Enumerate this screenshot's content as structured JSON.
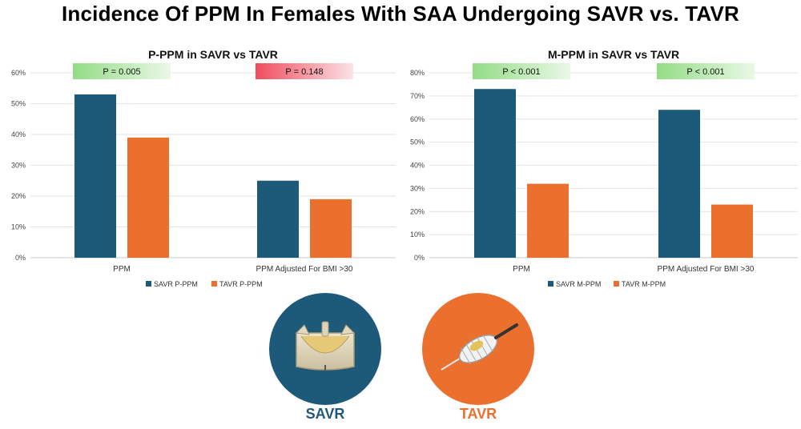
{
  "page": {
    "title": "Incidence Of PPM In Females With SAA Undergoing SAVR vs. TAVR"
  },
  "colors": {
    "savr": "#1d5a7a",
    "tavr": "#eb6f2d",
    "pval_green": "#a9e29a",
    "pval_red": "#f0808a"
  },
  "chart_data": [
    {
      "type": "bar",
      "title": "P-PPM in SAVR vs TAVR",
      "categories": [
        "PPM",
        "PPM Adjusted For BMI >30"
      ],
      "series": [
        {
          "name": "SAVR P-PPM",
          "values": [
            53,
            25
          ]
        },
        {
          "name": "TAVR P-PPM",
          "values": [
            39,
            19
          ]
        }
      ],
      "ylim": [
        0,
        60
      ],
      "yticks": [
        0,
        10,
        20,
        30,
        40,
        50,
        60
      ],
      "ytick_labels": [
        "0%",
        "10%",
        "20%",
        "30%",
        "40%",
        "50%",
        "60%"
      ],
      "annotations": [
        {
          "text": "P = 0.005",
          "category": 0,
          "style": "green"
        },
        {
          "text": "P = 0.148",
          "category": 1,
          "style": "red"
        }
      ],
      "grid": true,
      "legend": "bottom"
    },
    {
      "type": "bar",
      "title": "M-PPM in SAVR vs TAVR",
      "categories": [
        "PPM",
        "PPM Adjusted For BMI >30"
      ],
      "series": [
        {
          "name": "SAVR M-PPM",
          "values": [
            73,
            64
          ]
        },
        {
          "name": "TAVR M-PPM",
          "values": [
            32,
            23
          ]
        }
      ],
      "ylim": [
        0,
        80
      ],
      "yticks": [
        0,
        10,
        20,
        30,
        40,
        50,
        60,
        70,
        80
      ],
      "ytick_labels": [
        "0%",
        "10%",
        "20%",
        "30%",
        "40%",
        "50%",
        "60%",
        "70%",
        "80%"
      ],
      "annotations": [
        {
          "text": "P < 0.001",
          "category": 0,
          "style": "green"
        },
        {
          "text": "P < 0.001",
          "category": 1,
          "style": "green"
        }
      ],
      "grid": true,
      "legend": "bottom"
    }
  ],
  "valves": {
    "savr": {
      "label": "SAVR",
      "icon": "surgical-valve-icon"
    },
    "tavr": {
      "label": "TAVR",
      "icon": "transcatheter-valve-icon"
    }
  }
}
